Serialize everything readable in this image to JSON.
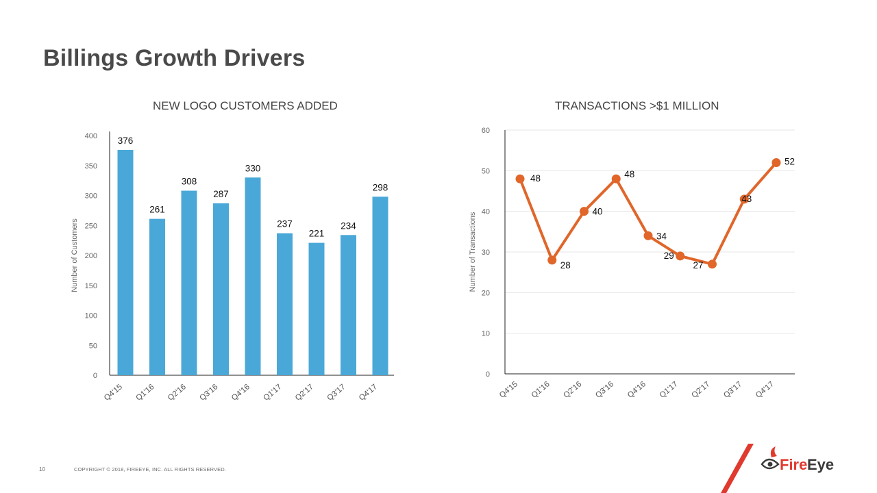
{
  "page": {
    "title": "Billings Growth Drivers",
    "page_number": "10",
    "copyright": "COPYRIGHT © 2018, FIREEYE, INC. ALL RIGHTS RESERVED.",
    "logo_text_fire": "Fire",
    "logo_text_eye": "Eye"
  },
  "colors": {
    "bar": "#4aa8d8",
    "line": "#e0662a",
    "title": "#4a4a4a",
    "logo_red": "#e03a2f",
    "logo_dark": "#3a3a3a"
  },
  "chart_data": [
    {
      "type": "bar",
      "title": "NEW LOGO CUSTOMERS ADDED",
      "xlabel": "",
      "ylabel": "Number of Customers",
      "categories": [
        "Q4'15",
        "Q1'16",
        "Q2'16",
        "Q3'16",
        "Q4'16",
        "Q1'17",
        "Q2'17",
        "Q3'17",
        "Q4'17"
      ],
      "values": [
        376,
        261,
        308,
        287,
        330,
        237,
        221,
        234,
        298
      ],
      "ylim": [
        0,
        400
      ],
      "yticks": [
        0,
        50,
        100,
        150,
        200,
        250,
        300,
        350,
        400
      ],
      "grid": false
    },
    {
      "type": "line",
      "title": "TRANSACTIONS >$1 MILLION",
      "xlabel": "",
      "ylabel": "Number of Transactions",
      "categories": [
        "Q4'15",
        "Q1'16",
        "Q2'16",
        "Q3'16",
        "Q4'16",
        "Q1'17",
        "Q2'17",
        "Q3'17",
        "Q4'17"
      ],
      "values": [
        48,
        28,
        40,
        48,
        34,
        29,
        27,
        43,
        52
      ],
      "ylim": [
        0,
        60
      ],
      "yticks": [
        0,
        10,
        20,
        30,
        40,
        50,
        60
      ],
      "grid": true
    }
  ]
}
